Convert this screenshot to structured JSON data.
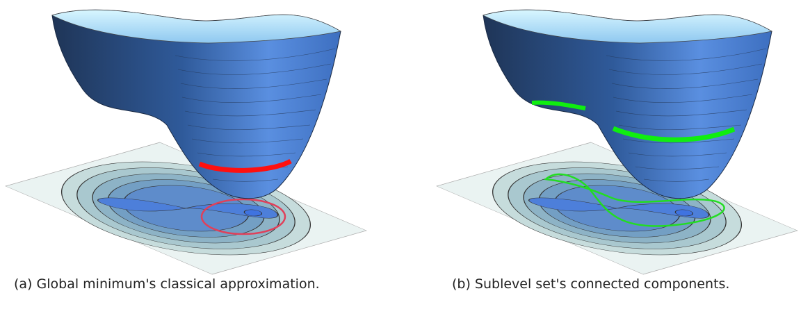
{
  "figures": [
    {
      "caption": "(a) Global minimum's classical approximation."
    },
    {
      "caption": "(b) Sublevel set's connected components."
    }
  ]
}
